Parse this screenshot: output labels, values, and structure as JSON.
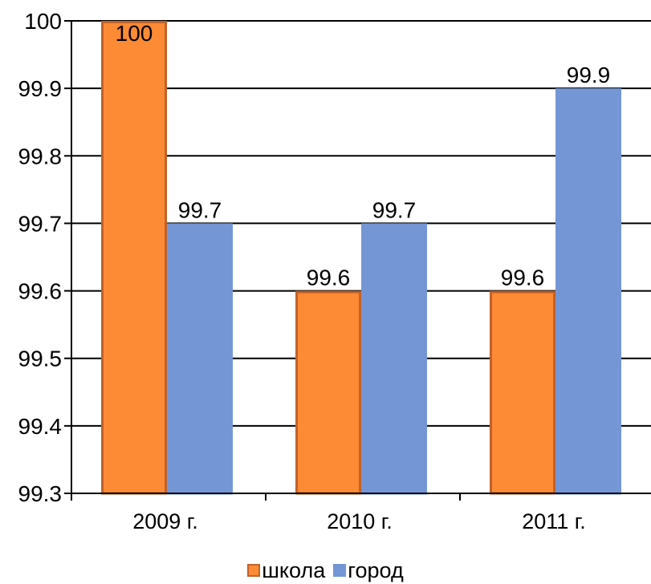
{
  "chart_data": {
    "type": "bar",
    "categories": [
      "2009 г.",
      "2010 г.",
      "2011 г."
    ],
    "series": [
      {
        "name": "школа",
        "values": [
          100,
          99.6,
          99.6
        ],
        "color": "#fd8a35",
        "border": "#c0622a"
      },
      {
        "name": "город",
        "values": [
          99.7,
          99.7,
          99.9
        ],
        "color": "#7596d5",
        "border": "#7596d5"
      }
    ],
    "data_labels": [
      [
        "100",
        "99.6",
        "99.6"
      ],
      [
        "99.7",
        "99.7",
        "99.9"
      ]
    ],
    "ylim": [
      99.3,
      100
    ],
    "yticks": [
      99.3,
      99.4,
      99.5,
      99.6,
      99.7,
      99.8,
      99.9,
      100
    ],
    "ytick_labels": [
      "99.3",
      "99.4",
      "99.5",
      "99.6",
      "99.7",
      "99.8",
      "99.9",
      "100"
    ],
    "grid": true,
    "legend_position": "bottom"
  }
}
